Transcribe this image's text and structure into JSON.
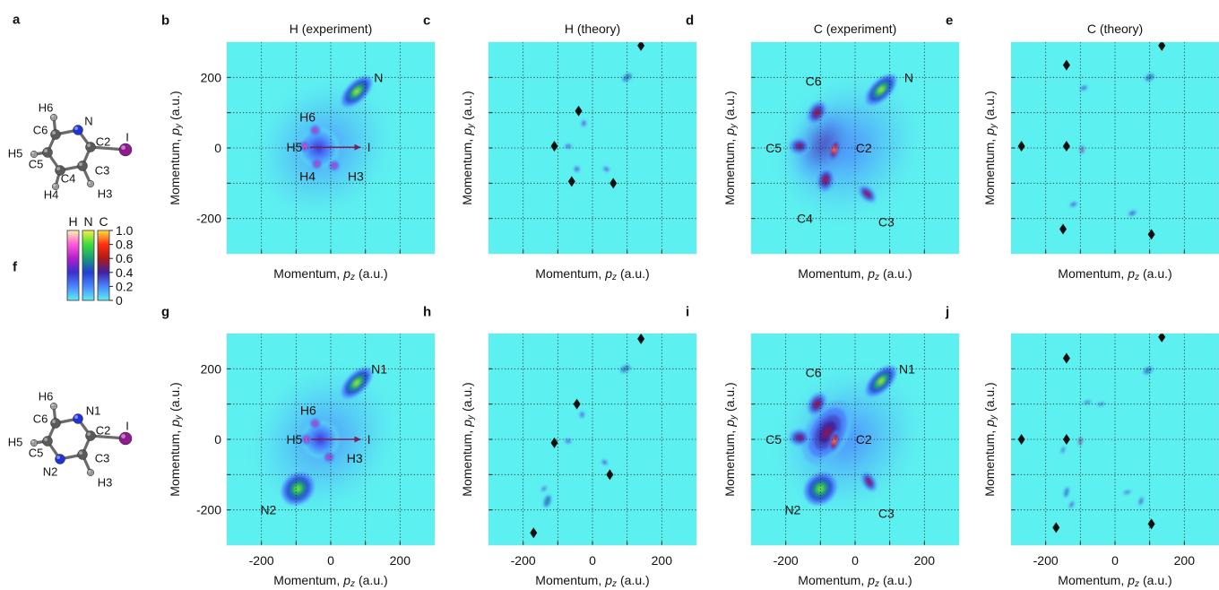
{
  "chart_data": [
    {
      "type": "scatter",
      "label": "b",
      "title": "H (experiment)",
      "xlabel": {
        "text": "Momentum,",
        "symbol": "p",
        "subscript": "z",
        "unit": "(a.u.)"
      },
      "ylabel": {
        "text": "Momentum,",
        "symbol": "p",
        "subscript": "y",
        "unit": "(a.u.)"
      },
      "xlim": [
        -300,
        300
      ],
      "ylim": [
        -300,
        300
      ],
      "grid": true,
      "xgrid": [
        -200,
        -100,
        0,
        100,
        200
      ],
      "ygrid": [
        -200,
        -100,
        0,
        100,
        200
      ],
      "yticks": [
        -200,
        0,
        200
      ],
      "spots": {
        "x": [
          -20,
          -35,
          75,
          -45,
          -75,
          -40,
          10
        ],
        "y": [
          0,
          0,
          160,
          50,
          5,
          -45,
          -50
        ],
        "intensity": [
          0.18,
          0.35,
          0.9,
          0.85,
          0.9,
          0.85,
          0.85
        ],
        "spread": [
          190,
          60,
          55,
          14,
          14,
          14,
          14
        ],
        "stretch": [
          0.85,
          1,
          0.5,
          1,
          1,
          1,
          1
        ],
        "angle": [
          45,
          0,
          45,
          0,
          0,
          0,
          0
        ],
        "colormap": [
          "C",
          "H",
          "N",
          "H",
          "H",
          "H",
          "H"
        ]
      },
      "annotations": [
        {
          "text": "N",
          "x": 138,
          "y": 200,
          "color": "#2233d6"
        },
        {
          "text": "H6",
          "x": -67,
          "y": 88,
          "color": "#8a8a8a"
        },
        {
          "text": "H5",
          "x": -105,
          "y": 3,
          "color": "#8a8a8a"
        },
        {
          "text": "H4",
          "x": -67,
          "y": -80,
          "color": "#8a8a8a"
        },
        {
          "text": "H3",
          "x": 72,
          "y": -80,
          "color": "#8a8a8a"
        },
        {
          "text": "I",
          "x": 110,
          "y": 2,
          "color": "#7b1e5a",
          "arrow_from": [
            -60,
            2
          ]
        }
      ]
    },
    {
      "type": "scatter",
      "label": "c",
      "title": "H (theory)",
      "xlabel": {
        "text": "Momentum,",
        "symbol": "p",
        "subscript": "z",
        "unit": "(a.u.)"
      },
      "ylabel": {
        "text": "Momentum,",
        "symbol": "p",
        "subscript": "y",
        "unit": "(a.u.)"
      },
      "xlim": [
        -300,
        300
      ],
      "ylim": [
        -300,
        300
      ],
      "grid": true,
      "xgrid": [
        -200,
        -100,
        0,
        100,
        200
      ],
      "ygrid": [
        -200,
        -100,
        0,
        100,
        200
      ],
      "spots": {
        "x": [
          100,
          -70,
          -25,
          -45,
          40
        ],
        "y": [
          200,
          5,
          70,
          -60,
          -60
        ],
        "intensity": [
          0.85,
          0.6,
          0.7,
          0.6,
          0.6
        ],
        "spread": [
          15,
          10,
          9,
          8,
          10
        ],
        "stretch": [
          0.55,
          0.6,
          0.7,
          1,
          0.6
        ],
        "angle": [
          40,
          0,
          80,
          0,
          -30
        ],
        "colormap": [
          "N",
          "H",
          "H",
          "H",
          "H"
        ]
      },
      "diamonds": {
        "x": [
          140,
          -110,
          -40,
          -60,
          60
        ],
        "y": [
          290,
          5,
          105,
          -95,
          -100
        ]
      }
    },
    {
      "type": "scatter",
      "label": "d",
      "title": "C (experiment)",
      "xlabel": {
        "text": "Momentum,",
        "symbol": "p",
        "subscript": "z",
        "unit": "(a.u.)"
      },
      "ylabel": {
        "text": "Momentum,",
        "symbol": "p",
        "subscript": "y",
        "unit": "(a.u.)"
      },
      "xlim": [
        -300,
        300
      ],
      "ylim": [
        -300,
        300
      ],
      "grid": true,
      "xgrid": [
        -200,
        -100,
        0,
        100,
        200
      ],
      "ygrid": [
        -200,
        -100,
        0,
        100,
        200
      ],
      "spots": {
        "x": [
          -20,
          -90,
          -110,
          -160,
          -85,
          35,
          -60,
          75
        ],
        "y": [
          0,
          10,
          100,
          5,
          -90,
          -130,
          -5,
          165
        ],
        "intensity": [
          0.2,
          0.5,
          0.6,
          0.55,
          0.6,
          0.6,
          0.95,
          0.9
        ],
        "spread": [
          200,
          110,
          35,
          30,
          35,
          30,
          30,
          55
        ],
        "stretch": [
          0.85,
          0.6,
          0.7,
          0.8,
          0.7,
          0.6,
          0.45,
          0.5
        ],
        "angle": [
          45,
          60,
          60,
          0,
          80,
          -45,
          75,
          45
        ],
        "colormap": [
          "C",
          "C",
          "C",
          "C",
          "C",
          "C",
          "C",
          "N"
        ]
      },
      "annotations": [
        {
          "text": "C6",
          "x": -120,
          "y": 190,
          "color": "#111111"
        },
        {
          "text": "N",
          "x": 155,
          "y": 200,
          "color": "#2233d6"
        },
        {
          "text": "C5",
          "x": -235,
          "y": 0,
          "color": "#111111"
        },
        {
          "text": "C2",
          "x": 25,
          "y": 0,
          "color": "#111111"
        },
        {
          "text": "C4",
          "x": -145,
          "y": -200,
          "color": "#111111"
        },
        {
          "text": "C3",
          "x": 90,
          "y": -210,
          "color": "#111111"
        }
      ]
    },
    {
      "type": "scatter",
      "label": "e",
      "title": "C (theory)",
      "xlabel": {
        "text": "Momentum,",
        "symbol": "p",
        "subscript": "z",
        "unit": "(a.u.)"
      },
      "ylabel": {
        "text": "Momentum,",
        "symbol": "p",
        "subscript": "y",
        "unit": "(a.u.)"
      },
      "xlim": [
        -300,
        300
      ],
      "ylim": [
        -300,
        300
      ],
      "grid": true,
      "xgrid": [
        -200,
        -100,
        0,
        100,
        200
      ],
      "ygrid": [
        -200,
        -100,
        0,
        100,
        200
      ],
      "spots": {
        "x": [
          100,
          -90,
          -95,
          -120,
          50
        ],
        "y": [
          200,
          170,
          -5,
          -160,
          -185
        ],
        "intensity": [
          0.85,
          0.5,
          0.9,
          0.5,
          0.5
        ],
        "spread": [
          14,
          12,
          12,
          12,
          13
        ],
        "stretch": [
          0.6,
          0.5,
          0.4,
          0.5,
          0.5
        ],
        "angle": [
          30,
          20,
          85,
          20,
          25
        ],
        "colormap": [
          "N",
          "C",
          "C",
          "C",
          "C"
        ]
      },
      "diamonds": {
        "x": [
          135,
          -140,
          -270,
          -140,
          -150,
          105
        ],
        "y": [
          290,
          235,
          5,
          5,
          -230,
          -245
        ]
      }
    },
    {
      "type": "scatter",
      "label": "g",
      "xlabel": {
        "text": "Momentum,",
        "symbol": "p",
        "subscript": "z",
        "unit": "(a.u.)"
      },
      "ylabel": {
        "text": "Momentum,",
        "symbol": "p",
        "subscript": "y",
        "unit": "(a.u.)"
      },
      "xlim": [
        -300,
        300
      ],
      "ylim": [
        -300,
        300
      ],
      "grid": true,
      "xgrid": [
        -200,
        -100,
        0,
        100,
        200
      ],
      "ygrid": [
        -200,
        -100,
        0,
        100,
        200
      ],
      "xticks": [
        -200,
        0,
        200
      ],
      "yticks": [
        -200,
        0,
        200
      ],
      "spots": {
        "x": [
          -20,
          -30,
          75,
          -95,
          -45,
          -70,
          -5
        ],
        "y": [
          0,
          0,
          160,
          -140,
          45,
          0,
          -50
        ],
        "intensity": [
          0.18,
          0.35,
          0.9,
          0.85,
          0.85,
          0.9,
          0.85
        ],
        "spread": [
          200,
          55,
          55,
          50,
          14,
          14,
          14
        ],
        "stretch": [
          0.85,
          1,
          0.5,
          0.85,
          1,
          1,
          1
        ],
        "angle": [
          45,
          0,
          45,
          45,
          0,
          0,
          0
        ],
        "colormap": [
          "C",
          "H",
          "N",
          "N",
          "H",
          "H",
          "H"
        ]
      },
      "annotations": [
        {
          "text": "N1",
          "x": 140,
          "y": 200,
          "color": "#2233d6"
        },
        {
          "text": "N2",
          "x": -180,
          "y": -200,
          "color": "#2233d6"
        },
        {
          "text": "H6",
          "x": -65,
          "y": 82,
          "color": "#8a8a8a"
        },
        {
          "text": "H5",
          "x": -105,
          "y": 0,
          "color": "#8a8a8a"
        },
        {
          "text": "H3",
          "x": 69,
          "y": -53,
          "color": "#8a8a8a"
        },
        {
          "text": "I",
          "x": 110,
          "y": 0,
          "color": "#7b1e5a",
          "arrow_from": [
            -55,
            0
          ]
        }
      ]
    },
    {
      "type": "scatter",
      "label": "h",
      "xlabel": {
        "text": "Momentum,",
        "symbol": "p",
        "subscript": "z",
        "unit": "(a.u.)"
      },
      "ylabel": {
        "text": "Momentum,",
        "symbol": "p",
        "subscript": "y",
        "unit": "(a.u.)"
      },
      "xlim": [
        -300,
        300
      ],
      "ylim": [
        -300,
        300
      ],
      "grid": true,
      "xgrid": [
        -200,
        -100,
        0,
        100,
        200
      ],
      "ygrid": [
        -200,
        -100,
        0,
        100,
        200
      ],
      "xticks": [
        -200,
        0,
        200
      ],
      "spots": {
        "x": [
          95,
          -30,
          -70,
          35,
          -130,
          -140
        ],
        "y": [
          200,
          70,
          -5,
          -65,
          -175,
          -140
        ],
        "intensity": [
          0.85,
          0.6,
          0.6,
          0.6,
          0.8,
          0.5
        ],
        "spread": [
          15,
          9,
          9,
          9,
          18,
          10
        ],
        "stretch": [
          0.55,
          0.7,
          0.7,
          0.7,
          0.5,
          0.5
        ],
        "angle": [
          30,
          80,
          0,
          -30,
          70,
          45
        ],
        "colormap": [
          "N",
          "H",
          "H",
          "H",
          "N",
          "C"
        ]
      },
      "diamonds": {
        "x": [
          140,
          -110,
          -45,
          50,
          -170
        ],
        "y": [
          285,
          -10,
          100,
          -100,
          -265
        ]
      }
    },
    {
      "type": "scatter",
      "label": "i",
      "xlabel": {
        "text": "Momentum,",
        "symbol": "p",
        "subscript": "z",
        "unit": "(a.u.)"
      },
      "ylabel": {
        "text": "Momentum,",
        "symbol": "p",
        "subscript": "y",
        "unit": "(a.u.)"
      },
      "xlim": [
        -300,
        300
      ],
      "ylim": [
        -300,
        300
      ],
      "grid": true,
      "xgrid": [
        -200,
        -100,
        0,
        100,
        200
      ],
      "ygrid": [
        -200,
        -100,
        0,
        100,
        200
      ],
      "xticks": [
        -200,
        0,
        200
      ],
      "spots": {
        "x": [
          -20,
          -80,
          -110,
          -160,
          40,
          -60,
          75,
          -100
        ],
        "y": [
          0,
          20,
          100,
          5,
          -120,
          -5,
          165,
          -140
        ],
        "intensity": [
          0.2,
          0.5,
          0.6,
          0.55,
          0.6,
          0.95,
          0.9,
          0.85
        ],
        "spread": [
          200,
          100,
          35,
          30,
          30,
          30,
          55,
          50
        ],
        "stretch": [
          0.85,
          0.6,
          0.7,
          0.8,
          0.6,
          0.45,
          0.5,
          0.85
        ],
        "angle": [
          45,
          60,
          60,
          0,
          -60,
          75,
          45,
          45
        ],
        "colormap": [
          "C",
          "C",
          "C",
          "C",
          "C",
          "C",
          "N",
          "N"
        ]
      },
      "annotations": [
        {
          "text": "C6",
          "x": -120,
          "y": 190,
          "color": "#111111"
        },
        {
          "text": "N1",
          "x": 150,
          "y": 200,
          "color": "#2233d6"
        },
        {
          "text": "C5",
          "x": -235,
          "y": 0,
          "color": "#111111"
        },
        {
          "text": "C2",
          "x": 25,
          "y": 0,
          "color": "#111111"
        },
        {
          "text": "N2",
          "x": -180,
          "y": -200,
          "color": "#2233d6"
        },
        {
          "text": "C3",
          "x": 90,
          "y": -210,
          "color": "#111111"
        }
      ]
    },
    {
      "type": "scatter",
      "label": "j",
      "xlabel": {
        "text": "Momentum,",
        "symbol": "p",
        "subscript": "z",
        "unit": "(a.u.)"
      },
      "ylabel": {
        "text": "Momentum,",
        "symbol": "p",
        "subscript": "y",
        "unit": "(a.u.)"
      },
      "xlim": [
        -300,
        300
      ],
      "ylim": [
        -300,
        300
      ],
      "grid": true,
      "xgrid": [
        -200,
        -100,
        0,
        100,
        200
      ],
      "ygrid": [
        -200,
        -100,
        0,
        100,
        200
      ],
      "xticks": [
        -200,
        0,
        200
      ],
      "spots": {
        "x": [
          95,
          -80,
          -40,
          -100,
          -150,
          -140,
          -125,
          35,
          75
        ],
        "y": [
          195,
          105,
          100,
          -5,
          -30,
          -150,
          -185,
          -150,
          -175
        ],
        "intensity": [
          0.85,
          0.55,
          0.5,
          0.9,
          0.5,
          0.8,
          0.55,
          0.55,
          0.55
        ],
        "spread": [
          14,
          12,
          12,
          12,
          12,
          15,
          12,
          12,
          13
        ],
        "stretch": [
          0.6,
          0.35,
          0.35,
          0.4,
          0.35,
          0.4,
          0.4,
          0.35,
          0.4
        ],
        "angle": [
          30,
          15,
          15,
          85,
          70,
          75,
          60,
          15,
          70
        ],
        "colormap": [
          "N",
          "C",
          "C",
          "C",
          "C",
          "N",
          "C",
          "C",
          "C"
        ]
      },
      "diamonds": {
        "x": [
          135,
          -140,
          -270,
          -140,
          -170,
          105
        ],
        "y": [
          290,
          230,
          0,
          0,
          -250,
          -240
        ]
      }
    }
  ],
  "colorbar": {
    "labels": [
      "H",
      "N",
      "C"
    ],
    "ticks": [
      {
        "value": 1,
        "label": "1.0"
      },
      0.8,
      0.6,
      0.4,
      0.2,
      0
    ],
    "colormaps": [
      [
        [
          0,
          "#5df0f0"
        ],
        [
          0.2,
          "#4a86ff"
        ],
        [
          0.4,
          "#3a2fd0"
        ],
        [
          0.6,
          "#b21ec8"
        ],
        [
          0.8,
          "#ff58dc"
        ],
        [
          1,
          "#fff4b0"
        ]
      ],
      [
        [
          0,
          "#5df0f0"
        ],
        [
          0.2,
          "#4a86ff"
        ],
        [
          0.4,
          "#2040d0"
        ],
        [
          0.6,
          "#1a9a7a"
        ],
        [
          0.8,
          "#3ddc3d"
        ],
        [
          1,
          "#f6f040"
        ]
      ],
      [
        [
          0,
          "#5df0f0"
        ],
        [
          0.2,
          "#4a86ff"
        ],
        [
          0.4,
          "#4020a0"
        ],
        [
          0.6,
          "#b01818"
        ],
        [
          0.8,
          "#ff3010"
        ],
        [
          1,
          "#ffe040"
        ]
      ]
    ]
  },
  "molecule_a": {
    "label": "a",
    "atoms": [
      "H6",
      "N",
      "C6",
      "C2",
      "I",
      "H5",
      "C5",
      "C3",
      "C4",
      "H4",
      "H3"
    ],
    "colors": [
      "#9a9a9a",
      "#2233d6",
      "#333333",
      "#333333",
      "#8e1c8e",
      "#9a9a9a",
      "#333333",
      "#333333",
      "#333333",
      "#9a9a9a",
      "#9a9a9a"
    ]
  },
  "molecule_f": {
    "label": "f",
    "atoms": [
      "H6",
      "N1",
      "C6",
      "C2",
      "I",
      "H5",
      "C5",
      "C3",
      "N2",
      "H3"
    ],
    "colors": [
      "#9a9a9a",
      "#2233d6",
      "#333333",
      "#333333",
      "#8e1c8e",
      "#9a9a9a",
      "#333333",
      "#333333",
      "#2233d6",
      "#9a9a9a"
    ]
  }
}
